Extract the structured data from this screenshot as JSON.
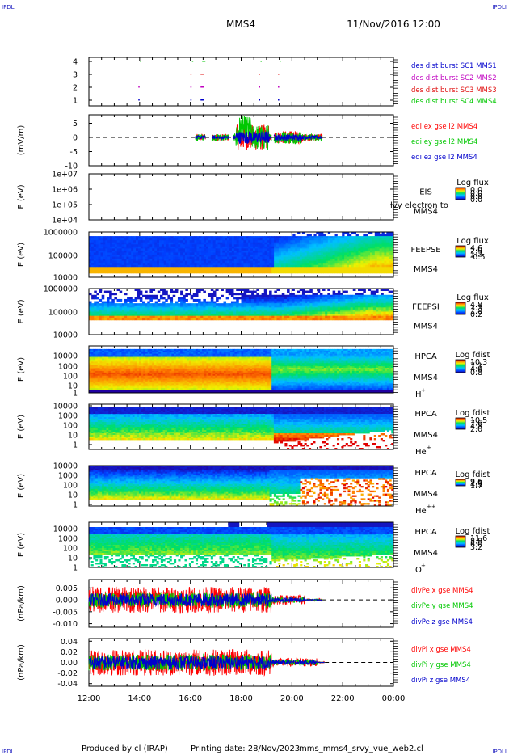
{
  "header": {
    "corner_tl": "IPDLI",
    "corner_tr": "IPDLI",
    "title": "MMS4",
    "date": "11/Nov/2016 12:00"
  },
  "footer": {
    "corner_bl": "IPDLI",
    "corner_br": "IPDLI",
    "produced_by": "Produced by cl (IRAP)",
    "printing_date": "Printing date: 28/Nov/2023",
    "file": "mms_mms4_srvy_vue_web2.cl"
  },
  "colors": {
    "red": "#ff0000",
    "green": "#00c800",
    "blue": "#0000cc",
    "magenta": "#c000c0",
    "burst_red": "#e01010"
  },
  "chart_data": [
    {
      "type": "scatter",
      "panel": "burst",
      "ylim": [
        0.5,
        4.5
      ],
      "ticks": [
        "1",
        "2",
        "3",
        "4"
      ],
      "legend": [
        {
          "label": "des dist burst SC1 MMS1",
          "color": "#0000cc"
        },
        {
          "label": "des dist burst SC2 MMS2",
          "color": "#c000c0"
        },
        {
          "label": "des dist burst SC3 MMS3",
          "color": "#e01010"
        },
        {
          "label": "des dist burst SC4 MMS4",
          "color": "#00c800"
        }
      ],
      "bursts_hours": [
        13.95,
        16.0,
        16.4,
        18.7,
        19.45
      ]
    },
    {
      "type": "line",
      "panel": "edi",
      "ylabel": "(mV/m)",
      "ylim": [
        -10,
        8
      ],
      "ticks": [
        "5",
        "0",
        "-5",
        "-10"
      ],
      "legend": [
        {
          "label": "edi ex gse l2 MMS4",
          "color": "#ff0000"
        },
        {
          "label": "edi ey gse l2 MMS4",
          "color": "#00c800"
        },
        {
          "label": "edi ez gse l2 MMS4",
          "color": "#0000cc"
        }
      ]
    },
    {
      "type": "heatmap",
      "panel": "eis",
      "ylabel": "E (eV)",
      "ticks": [
        "1e+07",
        "1e+06",
        "1e+05",
        "1e+04"
      ],
      "instrument": "EIS",
      "overlay": "lvy electron to",
      "spacecraft": "MMS4",
      "cbar_title": "Log flux",
      "cbar_ticks": [
        "0.0",
        "0.0",
        "0.0",
        "0.0"
      ]
    },
    {
      "type": "heatmap",
      "panel": "feeps_e",
      "ylabel": "E (eV)",
      "ticks": [
        "1000000",
        "100000",
        "10000"
      ],
      "instrument": "FEEPSE",
      "spacecraft": "MMS4",
      "cbar_title": "Log flux",
      "cbar_ticks": [
        "4.6",
        "2.9",
        "1.2",
        "-0.5"
      ]
    },
    {
      "type": "heatmap",
      "panel": "feeps_i",
      "ylabel": "E (eV)",
      "ticks": [
        "1000000",
        "100000",
        "10000"
      ],
      "instrument": "FEEPSI",
      "spacecraft": "MMS4",
      "cbar_title": "Log flux",
      "cbar_ticks": [
        "4.8",
        "3.3",
        "1.8",
        "0.2"
      ]
    },
    {
      "type": "heatmap",
      "panel": "hpca_h",
      "ylabel": "E (eV)",
      "ticks": [
        "10000",
        "1000",
        "100",
        "10",
        "1"
      ],
      "instrument": "HPCA",
      "spacecraft": "MMS4",
      "species": "H",
      "species_sup": "+",
      "cbar_title": "Log fdist",
      "cbar_ticks": [
        "10.3",
        "7.1",
        "4.0",
        "0.8"
      ]
    },
    {
      "type": "heatmap",
      "panel": "hpca_he1",
      "ylabel": "E (eV)",
      "ticks": [
        "10000",
        "1000",
        "100",
        "10",
        "1"
      ],
      "instrument": "HPCA",
      "spacecraft": "MMS4",
      "species": "He",
      "species_sup": "+",
      "cbar_title": "Log fdist",
      "cbar_ticks": [
        "10.5",
        "7.6",
        "4.8",
        "2.0"
      ]
    },
    {
      "type": "heatmap",
      "panel": "hpca_he2",
      "ylabel": "E (eV)",
      "ticks": [
        "10000",
        "1000",
        "100",
        "10",
        "1"
      ],
      "instrument": "HPCA",
      "spacecraft": "MMS4",
      "species": "He",
      "species_sup": "++",
      "cbar_title": "Log fdist",
      "cbar_ticks": [
        "9.6",
        "7.0",
        "4.3",
        "1.7"
      ]
    },
    {
      "type": "heatmap",
      "panel": "hpca_o",
      "ylabel": "E (eV)",
      "ticks": [
        "10000",
        "1000",
        "100",
        "10",
        "1"
      ],
      "instrument": "HPCA",
      "spacecraft": "MMS4",
      "species": "O",
      "species_sup": "+",
      "cbar_title": "Log fdist",
      "cbar_ticks": [
        "11.6",
        "8.8",
        "6.0",
        "3.2"
      ]
    },
    {
      "type": "line",
      "panel": "divpe",
      "ylabel": "(nPa/km)",
      "ylim": [
        -0.0115,
        0.0085
      ],
      "ticks": [
        "0.005",
        "0.000",
        "-0.005",
        "-0.010"
      ],
      "legend": [
        {
          "label": "divPe x gse MMS4",
          "color": "#ff0000"
        },
        {
          "label": "divPe y gse MMS4",
          "color": "#00c800"
        },
        {
          "label": "divPe z gse MMS4",
          "color": "#0000cc"
        }
      ]
    },
    {
      "type": "line",
      "panel": "divpi",
      "ylabel": "(nPa/km)",
      "ylim": [
        -0.045,
        0.045
      ],
      "ticks": [
        "0.04",
        "0.02",
        "0.00",
        "-0.02",
        "-0.04"
      ],
      "legend": [
        {
          "label": "divPi x gse MMS4",
          "color": "#ff0000"
        },
        {
          "label": "divPi y gse MMS4",
          "color": "#00c800"
        },
        {
          "label": "divPi z gse MMS4",
          "color": "#0000cc"
        }
      ]
    }
  ],
  "time_axis": {
    "labels": [
      "12:00",
      "14:00",
      "16:00",
      "18:00",
      "20:00",
      "22:00",
      "00:00"
    ],
    "range_hours": [
      12,
      24
    ]
  }
}
